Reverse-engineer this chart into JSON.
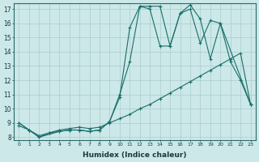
{
  "xlabel": "Humidex (Indice chaleur)",
  "bg_color": "#cce8e8",
  "grid_color": "#aacccc",
  "line_color": "#1a6e6a",
  "xlim": [
    -0.5,
    23.5
  ],
  "ylim": [
    7.8,
    17.4
  ],
  "yticks": [
    8,
    9,
    10,
    11,
    12,
    13,
    14,
    15,
    16,
    17
  ],
  "xticks": [
    0,
    1,
    2,
    3,
    4,
    5,
    6,
    7,
    8,
    9,
    10,
    11,
    12,
    13,
    14,
    15,
    16,
    17,
    18,
    19,
    20,
    21,
    22,
    23
  ],
  "series": [
    {
      "x": [
        0,
        1,
        2,
        3,
        4,
        5,
        6,
        7,
        8,
        9,
        10,
        11,
        12,
        13,
        14,
        15,
        16,
        17,
        18,
        19,
        20,
        21,
        22,
        23
      ],
      "y": [
        9,
        8.5,
        8,
        8.3,
        8.4,
        8.5,
        8.5,
        8.4,
        8.5,
        9.1,
        11.0,
        13.3,
        17.2,
        17.2,
        17.2,
        14.4,
        16.7,
        17.0,
        14.6,
        16.2,
        16.0,
        13.3,
        12.0,
        10.3
      ]
    },
    {
      "x": [
        0,
        1,
        2,
        4,
        5,
        6,
        7,
        8,
        9,
        10,
        11,
        12,
        13,
        14,
        15,
        16,
        17,
        18,
        19,
        20,
        23
      ],
      "y": [
        9,
        8.5,
        8,
        8.4,
        8.5,
        8.5,
        8.4,
        8.5,
        9.1,
        10.8,
        15.7,
        17.2,
        17.0,
        14.4,
        14.4,
        16.7,
        17.3,
        16.3,
        13.5,
        16.0,
        10.3
      ]
    },
    {
      "x": [
        0,
        1,
        2,
        3,
        4,
        5,
        6,
        7,
        8,
        9,
        10,
        11,
        12,
        13,
        14,
        15,
        16,
        17,
        18,
        19,
        20,
        21,
        22,
        23
      ],
      "y": [
        8.8,
        8.5,
        8.1,
        8.3,
        8.5,
        8.6,
        8.7,
        8.6,
        8.7,
        9.0,
        9.3,
        9.6,
        10.0,
        10.3,
        10.7,
        11.1,
        11.5,
        11.9,
        12.3,
        12.7,
        13.1,
        13.5,
        13.9,
        10.3
      ]
    }
  ]
}
